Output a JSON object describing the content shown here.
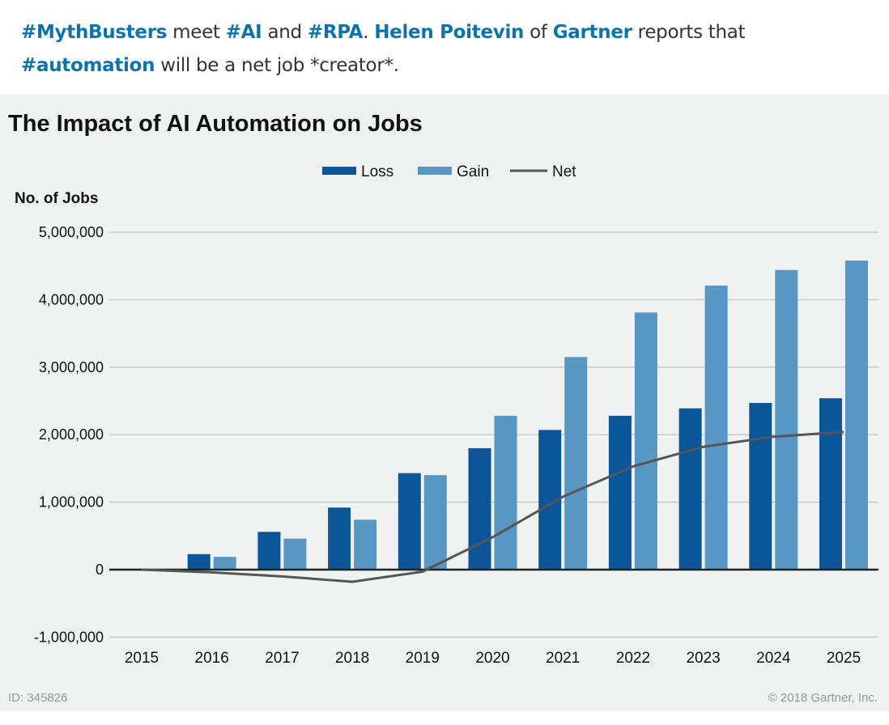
{
  "post": {
    "parts": [
      {
        "text": "#MythBusters",
        "bold": true
      },
      {
        "text": " meet ",
        "bold": false
      },
      {
        "text": "#AI",
        "bold": true
      },
      {
        "text": " and ",
        "bold": false
      },
      {
        "text": "#RPA",
        "bold": true
      },
      {
        "text": ".  ",
        "bold": false
      },
      {
        "text": "Helen Poitevin",
        "bold": true
      },
      {
        "text": " of ",
        "bold": false
      },
      {
        "text": "Gartner",
        "bold": true
      },
      {
        "text": " reports that ",
        "bold": false
      },
      {
        "text": "#automation",
        "bold": true
      },
      {
        "text": " will be a net job *creator*.",
        "bold": false
      }
    ]
  },
  "footer": {
    "id": "ID: 345826",
    "copyright": "© 2018 Gartner, Inc."
  },
  "chart_data": {
    "type": "bar",
    "title": "The Impact of AI Automation on Jobs",
    "ylabel": "No. of Jobs",
    "xlabel": "",
    "categories": [
      "2015",
      "2016",
      "2017",
      "2018",
      "2019",
      "2020",
      "2021",
      "2022",
      "2023",
      "2024",
      "2025"
    ],
    "series": [
      {
        "name": "Loss",
        "type": "bar",
        "color": "#0a5699",
        "values": [
          0,
          230000,
          560000,
          920000,
          1430000,
          1800000,
          2070000,
          2280000,
          2390000,
          2470000,
          2540000
        ]
      },
      {
        "name": "Gain",
        "type": "bar",
        "color": "#5897c4",
        "values": [
          0,
          190000,
          460000,
          740000,
          1400000,
          2280000,
          3150000,
          3810000,
          4210000,
          4440000,
          4580000
        ]
      },
      {
        "name": "Net",
        "type": "line",
        "color": "#555555",
        "values": [
          0,
          -40000,
          -100000,
          -180000,
          -30000,
          480000,
          1080000,
          1530000,
          1820000,
          1970000,
          2040000
        ]
      }
    ],
    "ylim": [
      -1000000,
      5000000
    ],
    "yticks": [
      -1000000,
      0,
      1000000,
      2000000,
      3000000,
      4000000,
      5000000
    ],
    "ytick_labels": [
      "-1,000,000",
      "0",
      "1,000,000",
      "2,000,000",
      "3,000,000",
      "4,000,000",
      "5,000,000"
    ],
    "grid": true,
    "legend": "top-center"
  }
}
